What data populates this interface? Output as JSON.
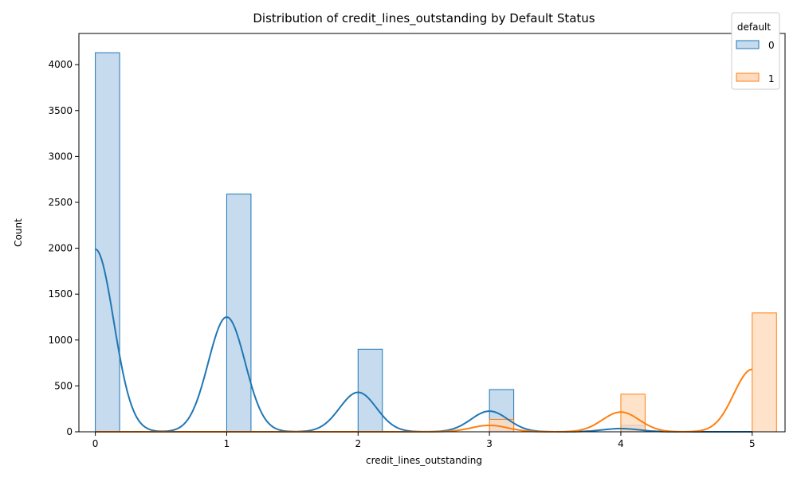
{
  "chart_data": {
    "type": "histogram",
    "title": "Distribution of credit_lines_outstanding by Default Status",
    "xlabel": "credit_lines_outstanding",
    "ylabel": "Count",
    "xlim": [
      -0.125,
      5.25
    ],
    "ylim": [
      0,
      4340
    ],
    "x_ticks": [
      0,
      1,
      2,
      3,
      4,
      5
    ],
    "y_ticks": [
      0,
      500,
      1000,
      1500,
      2000,
      2500,
      3000,
      3500,
      4000
    ],
    "bin_width": 0.185,
    "legend": {
      "title": "default",
      "placement": "top-right"
    },
    "series": [
      {
        "name": "0",
        "color": "#1f77b4",
        "fill": "#c6dbed",
        "bars": [
          {
            "x": 0,
            "value": 4130
          },
          {
            "x": 1,
            "value": 2590
          },
          {
            "x": 2,
            "value": 900
          },
          {
            "x": 3,
            "value": 460
          },
          {
            "x": 4,
            "value": 70
          }
        ],
        "kde": {
          "x": [
            0,
            1,
            2,
            3,
            4
          ],
          "peaks": [
            1990,
            1250,
            430,
            225,
            35
          ],
          "sigma": 0.14
        }
      },
      {
        "name": "1",
        "color": "#ff7f0e",
        "fill": "#ffdbbd",
        "bars": [
          {
            "x": 3,
            "value": 135
          },
          {
            "x": 4,
            "value": 410
          },
          {
            "x": 5,
            "value": 1295
          }
        ],
        "kde": {
          "x": [
            3,
            4,
            5
          ],
          "peaks": [
            70,
            215,
            680
          ],
          "sigma": 0.14
        }
      }
    ]
  }
}
